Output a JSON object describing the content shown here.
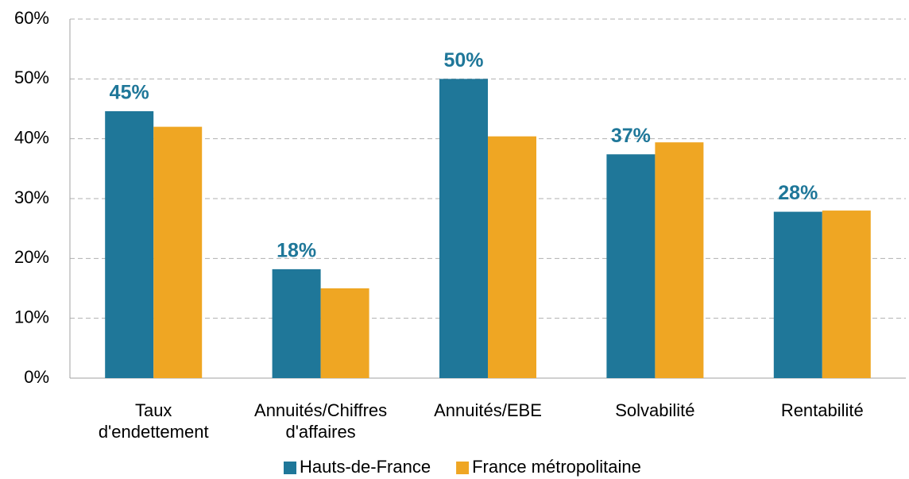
{
  "chart_data": {
    "type": "bar",
    "categories": [
      "Taux\nd'endettement",
      "Annuités/Chiffres\nd'affaires",
      "Annuités/EBE",
      "Solvabilité",
      "Rentabilité"
    ],
    "series": [
      {
        "name": "Hauts-de-France",
        "color": "#1f7799",
        "values": [
          44.6,
          18.2,
          50,
          37.4,
          27.8
        ],
        "value_labels": [
          "45%",
          "18%",
          "50%",
          "37%",
          "28%"
        ]
      },
      {
        "name": "France métropolitaine",
        "color": "#efa623",
        "values": [
          42,
          15,
          40.4,
          39.4,
          28
        ]
      }
    ],
    "ylim": [
      0,
      60
    ],
    "yticks": [
      {
        "value": 0,
        "label": "0%"
      },
      {
        "value": 10,
        "label": "10%"
      },
      {
        "value": 20,
        "label": "20%"
      },
      {
        "value": 30,
        "label": "30%"
      },
      {
        "value": 40,
        "label": "40%"
      },
      {
        "value": 50,
        "label": "50%"
      },
      {
        "value": 60,
        "label": "60%"
      }
    ],
    "grid": true,
    "legend": "bottom"
  }
}
